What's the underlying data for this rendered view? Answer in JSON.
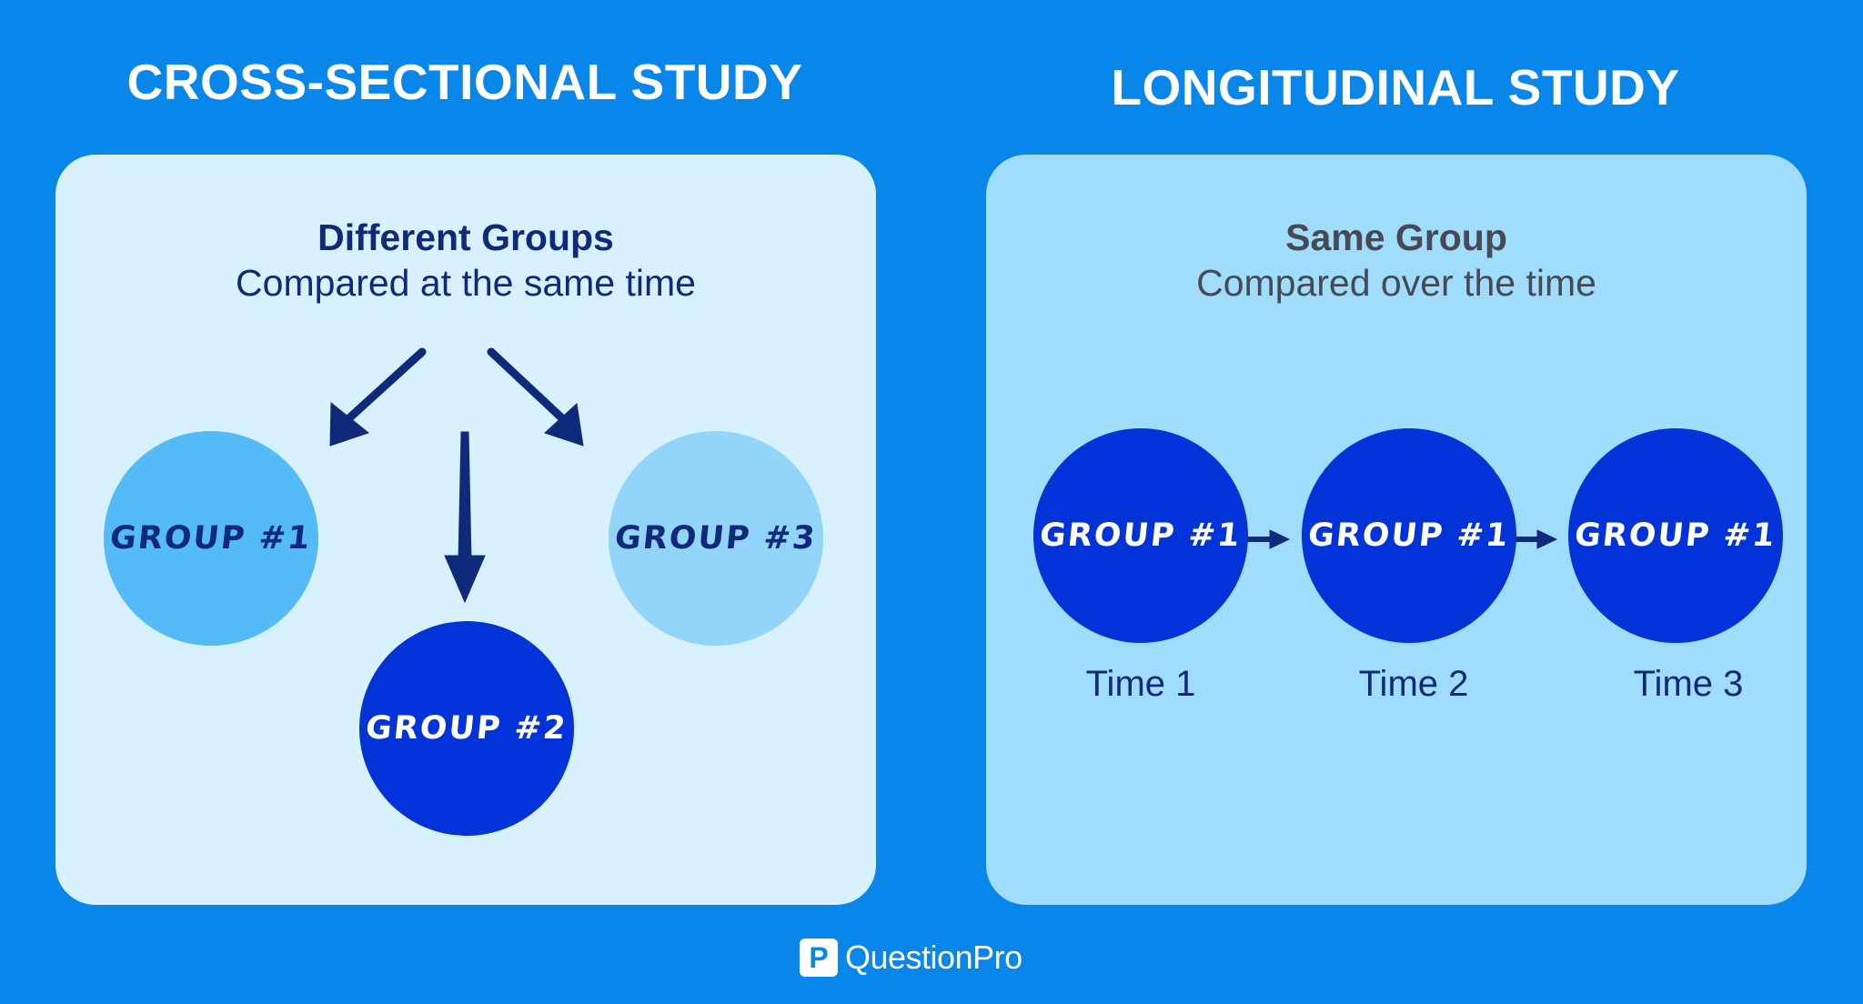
{
  "cross_sectional": {
    "heading": "CROSS-SECTIONAL STUDY",
    "title": "Different Groups",
    "subtitle": "Compared at the same time",
    "groups": [
      {
        "label": "GROUP #1"
      },
      {
        "label": "GROUP #2"
      },
      {
        "label": "GROUP #3"
      }
    ]
  },
  "longitudinal": {
    "heading": "LONGITUDINAL STUDY",
    "title": "Same Group",
    "subtitle": "Compared over the time",
    "stages": [
      {
        "group": "GROUP #1",
        "time": "Time 1"
      },
      {
        "group": "GROUP #1",
        "time": "Time 2"
      },
      {
        "group": "GROUP #1",
        "time": "Time 3"
      }
    ]
  },
  "brand": {
    "logo_letter": "P",
    "name": "QuestionPro"
  },
  "colors": {
    "background": "#0986ea",
    "left_panel": "#d7f1fe",
    "right_panel": "#a0dcfb",
    "group_light": "#55baf8",
    "group_pale": "#93d4fb",
    "group_dark": "#0233d8",
    "arrow": "#0f2a7a"
  }
}
